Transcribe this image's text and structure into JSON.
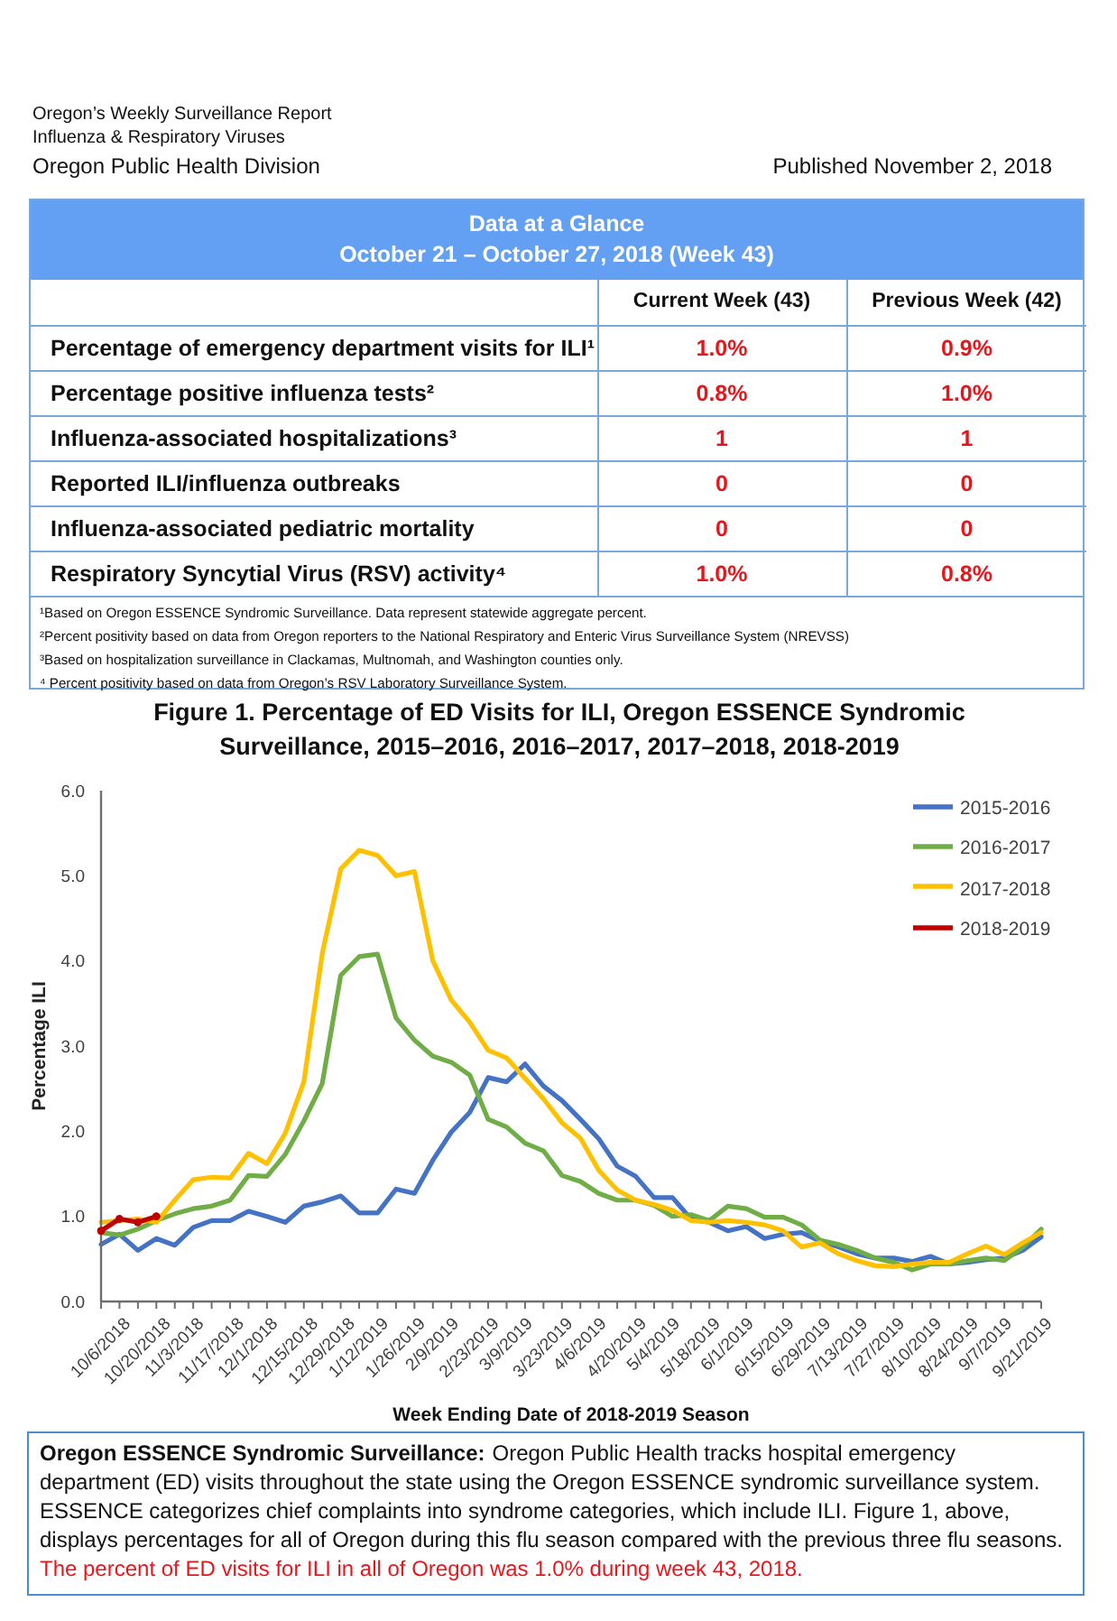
{
  "chart_data": [
    {
      "type": "other",
      "annotations": [
        "Oregon’s Weekly Surveillance Report",
        "Influenza & Respiratory Viruses",
        "Oregon Public Health Division",
        "Published November 2, 2018"
      ]
    },
    {
      "type": "other",
      "title": "Data at a Glance",
      "subtitle": "October 21 – October 27, 2018 (Week 43)",
      "annotations": [
        "Current Week (43)",
        "Previous Week (42)",
        "Percentage of emergency department visits for ILI¹",
        "1.0%",
        "0.9%",
        "Percentage positive influenza tests²",
        "0.8%",
        "1.0%",
        "Influenza-associated hospitalizations³",
        "1",
        "1",
        "Reported ILI/influenza outbreaks",
        "0",
        "0",
        "Influenza-associated pediatric mortality",
        "0",
        "0",
        "Respiratory Syncytial Virus (RSV) activity⁴",
        "1.0%",
        "0.8%",
        "¹Based on Oregon ESSENCE Syndromic Surveillance. Data represent statewide aggregate percent.",
        "²Percent positivity based on data from Oregon reporters to the National Respiratory and Enteric Virus Surveillance System (NREVSS)",
        "³Based on hospitalization surveillance in Clackamas, Multnomah, and Washington counties only.",
        "⁴ Percent positivity based on data from Oregon’s RSV Laboratory Surveillance System."
      ]
    },
    {
      "type": "line",
      "title": "Figure 1. Percentage of ED Visits for ILI, Oregon ESSENCE Syndromic Surveillance, 2015–2016, 2016–2017, 2017–2018, 2018-2019",
      "xlabel": "Week Ending Date of 2018-2019 Season",
      "ylabel": "Percentage ILI",
      "categories": [
        "10/6/2018",
        null,
        "10/20/2018",
        null,
        "11/3/2018",
        null,
        "11/17/2018",
        null,
        "12/1/2018",
        null,
        "12/15/2018",
        null,
        "12/29/2018",
        null,
        "1/12/2019",
        null,
        "1/26/2019",
        null,
        "2/9/2019",
        null,
        "2/23/2019",
        null,
        "3/9/2019",
        null,
        "3/23/2019",
        null,
        "4/6/2019",
        null,
        "4/20/2019",
        null,
        "5/4/2019",
        null,
        "5/18/2019",
        null,
        "6/1/2019",
        null,
        "6/15/2019",
        null,
        "6/29/2019",
        null,
        "7/13/2019",
        null,
        "7/27/2019",
        null,
        "8/10/2019",
        null,
        "8/24/2019",
        null,
        "9/7/2019",
        null,
        "9/21/2019",
        null
      ],
      "series": [
        {
          "name": "2015-2016",
          "color": "#4472c4",
          "values": [
            0.67,
            0.79,
            0.6,
            0.74,
            0.66,
            0.87,
            0.95,
            0.95,
            1.06,
            1.0,
            0.93,
            1.12,
            1.17,
            1.24,
            1.04,
            1.04,
            1.32,
            1.27,
            1.66,
            1.99,
            2.22,
            2.63,
            2.58,
            2.79,
            2.53,
            2.36,
            2.14,
            1.91,
            1.59,
            1.47,
            1.22,
            1.22,
            0.97,
            0.93,
            0.83,
            0.88,
            0.74,
            0.79,
            0.81,
            0.71,
            0.64,
            0.56,
            0.51,
            0.51,
            0.47,
            0.53,
            0.44,
            0.46,
            0.49,
            0.51,
            0.6,
            0.76
          ]
        },
        {
          "name": "2016-2017",
          "color": "#70ad47",
          "values": [
            0.81,
            0.78,
            0.85,
            0.95,
            1.03,
            1.09,
            1.12,
            1.19,
            1.48,
            1.47,
            1.73,
            2.12,
            2.56,
            3.83,
            4.05,
            4.08,
            3.33,
            3.07,
            2.88,
            2.81,
            2.66,
            2.14,
            2.05,
            1.86,
            1.77,
            1.48,
            1.41,
            1.27,
            1.19,
            1.19,
            1.13,
            1.0,
            1.02,
            0.95,
            1.12,
            1.09,
            0.99,
            0.99,
            0.9,
            0.72,
            0.67,
            0.6,
            0.51,
            0.46,
            0.37,
            0.44,
            0.44,
            0.48,
            0.51,
            0.48,
            0.64,
            0.85
          ]
        },
        {
          "name": "2017-2018",
          "color": "#ffc000",
          "values": [
            0.93,
            0.95,
            0.97,
            0.93,
            1.19,
            1.43,
            1.46,
            1.45,
            1.74,
            1.62,
            1.98,
            2.58,
            4.09,
            5.08,
            5.3,
            5.24,
            5.0,
            5.05,
            4.0,
            3.54,
            3.28,
            2.95,
            2.86,
            2.62,
            2.38,
            2.1,
            1.92,
            1.54,
            1.31,
            1.19,
            1.14,
            1.07,
            0.95,
            0.93,
            0.95,
            0.93,
            0.9,
            0.83,
            0.64,
            0.69,
            0.56,
            0.48,
            0.42,
            0.41,
            0.44,
            0.46,
            0.46,
            0.56,
            0.65,
            0.55,
            0.69,
            0.81
          ]
        },
        {
          "name": "2018-2019",
          "color": "#c00000",
          "marker": "circle",
          "values": [
            0.83,
            0.97,
            0.93,
            1.0,
            null,
            null,
            null,
            null,
            null,
            null,
            null,
            null,
            null,
            null,
            null,
            null,
            null,
            null,
            null,
            null,
            null,
            null,
            null,
            null,
            null,
            null,
            null,
            null,
            null,
            null,
            null,
            null,
            null,
            null,
            null,
            null,
            null,
            null,
            null,
            null,
            null,
            null,
            null,
            null,
            null,
            null,
            null,
            null,
            null,
            null,
            null,
            null
          ]
        }
      ],
      "ylim": [
        0,
        6
      ],
      "yticks": [
        {
          "value": 0,
          "label": "0.0"
        },
        {
          "value": 1,
          "label": "1.0"
        },
        {
          "value": 2,
          "label": "2.0"
        },
        {
          "value": 3,
          "label": "3.0"
        },
        {
          "value": 4,
          "label": "4.0"
        },
        {
          "value": 5,
          "label": "5.0"
        },
        {
          "value": 6,
          "label": "6.0"
        }
      ],
      "legend": "top right",
      "annotations": [
        "Oregon ESSENCE Syndromic Surveillance:",
        "Oregon Public Health tracks hospital emergency",
        "department (ED) visits throughout the state using the Oregon ESSENCE syndromic surveillance system.",
        "ESSENCE categorizes chief complaints into syndrome categories, which include ILI. Figure 1, above,",
        "displays percentages for all of Oregon during this flu season compared with the previous three flu seasons.",
        "The percent of ED visits for ILI in all of Oregon was 1.0% during week 43, 2018."
      ]
    }
  ]
}
